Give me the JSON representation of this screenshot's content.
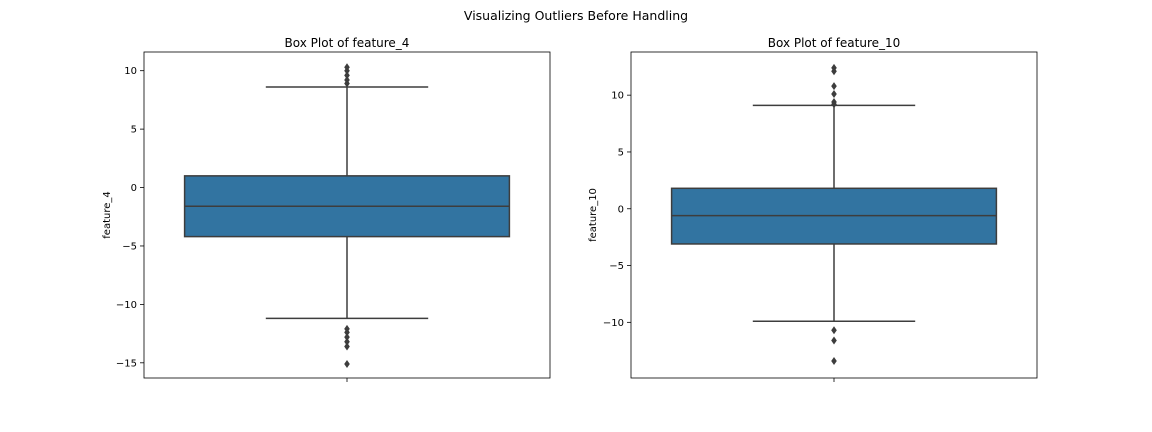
{
  "figure": {
    "suptitle": "Visualizing Outliers Before Handling"
  },
  "chart_data": [
    {
      "type": "box",
      "title": "Box Plot of feature_4",
      "xlabel": "",
      "ylabel": "feature_4",
      "ylim": [
        -16.3,
        11.6
      ],
      "yticks": [
        10,
        5,
        0,
        -5,
        -10,
        -15
      ],
      "ytick_labels": [
        "10",
        "5",
        "0",
        "−5",
        "−10",
        "−15"
      ],
      "box": {
        "q1": -4.2,
        "median": -1.6,
        "q3": 1.0,
        "whisker_low": -11.2,
        "whisker_high": 8.6
      },
      "outliers": [
        10.3,
        10.0,
        9.6,
        9.2,
        8.9,
        -12.1,
        -12.4,
        -12.8,
        -13.2,
        -13.6,
        -15.1
      ],
      "color": "#3274a1",
      "line_color": "#3d3d3d"
    },
    {
      "type": "box",
      "title": "Box Plot of feature_10",
      "xlabel": "",
      "ylabel": "feature_10",
      "ylim": [
        -14.9,
        13.8
      ],
      "yticks": [
        10,
        5,
        0,
        -5,
        -10
      ],
      "ytick_labels": [
        "10",
        "5",
        "0",
        "−5",
        "−10"
      ],
      "box": {
        "q1": -3.1,
        "median": -0.6,
        "q3": 1.8,
        "whisker_low": -9.9,
        "whisker_high": 9.1
      },
      "outliers": [
        12.4,
        12.1,
        10.8,
        10.1,
        9.4,
        9.2,
        -10.7,
        -11.6,
        -13.4
      ],
      "color": "#3274a1",
      "line_color": "#3d3d3d"
    }
  ]
}
